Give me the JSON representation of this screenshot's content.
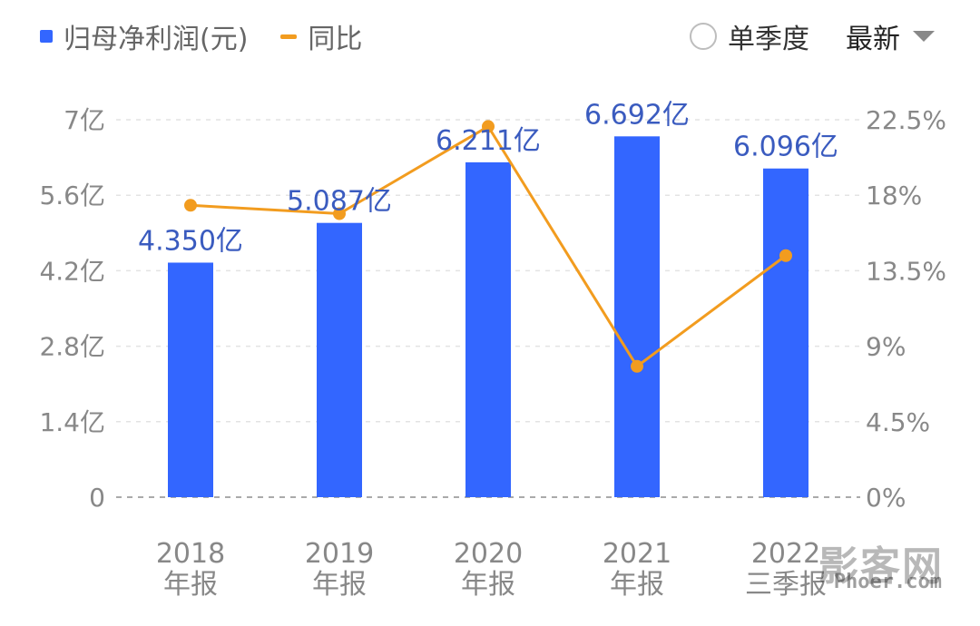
{
  "legend": {
    "bar_label": "归母净利润(元)",
    "line_label": "同比"
  },
  "controls": {
    "single_quarter_label": "单季度",
    "latest_label": "最新"
  },
  "watermark": {
    "main": "影客网",
    "sub": "Phoer.com"
  },
  "colors": {
    "bar": "#3366ff",
    "line": "#f29c1f",
    "axis_text": "#888888",
    "data_label": "#3a5bbf"
  },
  "chart_data": {
    "type": "bar",
    "categories": [
      [
        "2018",
        "年报"
      ],
      [
        "2019",
        "年报"
      ],
      [
        "2020",
        "年报"
      ],
      [
        "2021",
        "年报"
      ],
      [
        "2022",
        "三季报"
      ]
    ],
    "series": [
      {
        "name": "归母净利润(元)",
        "type": "bar",
        "axis": "left",
        "values": [
          4.35,
          5.087,
          6.211,
          6.692,
          6.096
        ],
        "labels": [
          "4.350亿",
          "5.087亿",
          "6.211亿",
          "6.692亿",
          "6.096亿"
        ]
      },
      {
        "name": "同比",
        "type": "line",
        "axis": "right",
        "values": [
          17.4,
          16.9,
          22.1,
          7.8,
          14.4
        ]
      }
    ],
    "left_axis": {
      "ylim": [
        0,
        7
      ],
      "ticks": [
        0,
        1.4,
        2.8,
        4.2,
        5.6,
        7
      ],
      "tick_labels": [
        "0",
        "1.4亿",
        "2.8亿",
        "4.2亿",
        "5.6亿",
        "7亿"
      ]
    },
    "right_axis": {
      "ylim": [
        0,
        22.5
      ],
      "ticks": [
        0,
        4.5,
        9,
        13.5,
        18,
        22.5
      ],
      "tick_labels": [
        "0%",
        "4.5%",
        "9%",
        "13.5%",
        "18%",
        "22.5%"
      ]
    },
    "grid": true,
    "legend_position": "top-left"
  }
}
